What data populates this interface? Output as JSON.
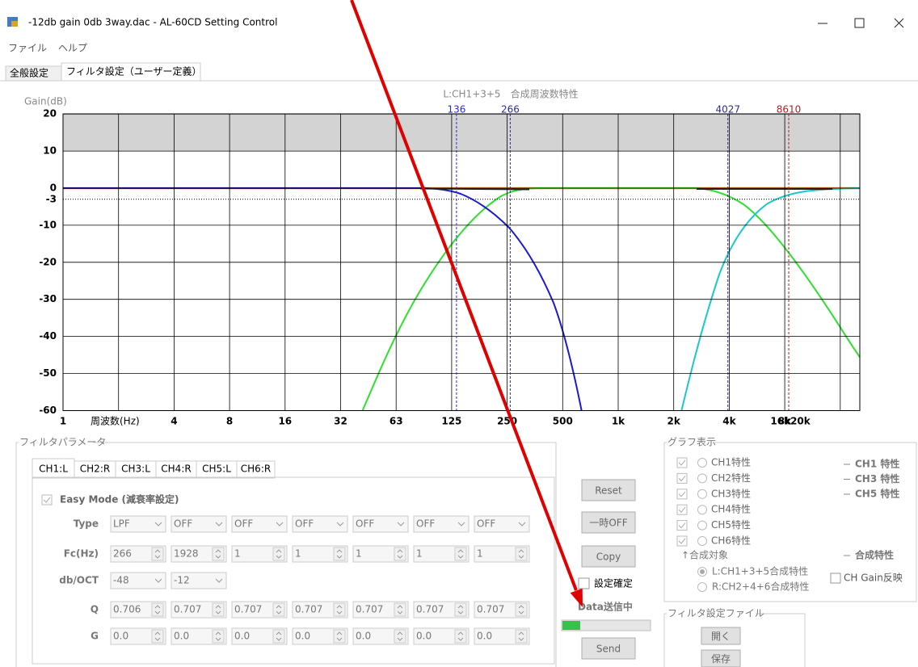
{
  "window": {
    "title": "-12db gain 0db 3way.dac - AL-60CD Setting Control",
    "menu": [
      "ファイル",
      "ヘルプ"
    ],
    "tabs": [
      "全般設定",
      "フィルタ設定（ユーザー定義）"
    ]
  },
  "graph": {
    "title": "L:CH1+3+5　合成周波数特性",
    "y_label": "Gain(dB)",
    "x_label": "周波数(Hz)",
    "yticks": [
      20,
      10,
      0,
      -3,
      -10,
      -20,
      -30,
      -40,
      -50,
      -60
    ],
    "xticks": [
      1,
      4,
      8,
      16,
      32,
      63,
      125,
      250,
      500,
      "1k",
      "2k",
      "4k",
      "8k",
      "16k20k"
    ],
    "markers": [
      {
        "value": 136,
        "color": "#2a2ad8"
      },
      {
        "value": 266,
        "color": "#2e2e8c"
      },
      {
        "value": 4027,
        "color": "#2e2e8c"
      },
      {
        "value": 8610,
        "color": "#b02020"
      }
    ]
  },
  "filter_params": {
    "title": "フィルタパラメータ",
    "channel_tabs": [
      "CH1:L",
      "CH2:R",
      "CH3:L",
      "CH4:R",
      "CH5:L",
      "CH6:R"
    ],
    "easy_mode": "Easy Mode (減衰率設定)",
    "rows": [
      {
        "label": "Type",
        "kind": "combo",
        "values": [
          "LPF",
          "OFF",
          "OFF",
          "OFF",
          "OFF",
          "OFF",
          "OFF"
        ]
      },
      {
        "label": "Fc(Hz)",
        "kind": "spin",
        "values": [
          266,
          1928,
          1,
          1,
          1,
          1,
          1
        ]
      },
      {
        "label": "db/OCT",
        "kind": "combo",
        "values": [
          -48,
          -12
        ]
      },
      {
        "label": "Q",
        "kind": "spin",
        "values": [
          0.706,
          0.707,
          0.707,
          0.707,
          0.707,
          0.707,
          0.707
        ]
      },
      {
        "label": "G",
        "kind": "spin",
        "values": [
          "0.0",
          "0.0",
          "0.0",
          "0.0",
          "0.0",
          "0.0",
          "0.0"
        ]
      }
    ]
  },
  "actions": {
    "buttons": [
      "Reset",
      "一時OFF",
      "Copy",
      "Send"
    ],
    "confirm": "設定確定",
    "status": "Data送信中"
  },
  "graph_display": {
    "title": "グラフ表示",
    "channels": [
      "CH1特性",
      "CH2特性",
      "CH3特性",
      "CH4特性",
      "CH5特性",
      "CH6特性"
    ],
    "legend": [
      "CH1 特性",
      "CH3 特性",
      "CH5 特性"
    ],
    "sum_legend": "合成特性",
    "sum_target": "↑合成対象",
    "sum_options": [
      "L:CH1+3+5合成特性",
      "R:CH2+4+6合成特性"
    ],
    "gain_option": "CH Gain反映"
  },
  "file_group": {
    "title": "フィルタ設定ファイル",
    "buttons": [
      "開く",
      "保存"
    ]
  }
}
